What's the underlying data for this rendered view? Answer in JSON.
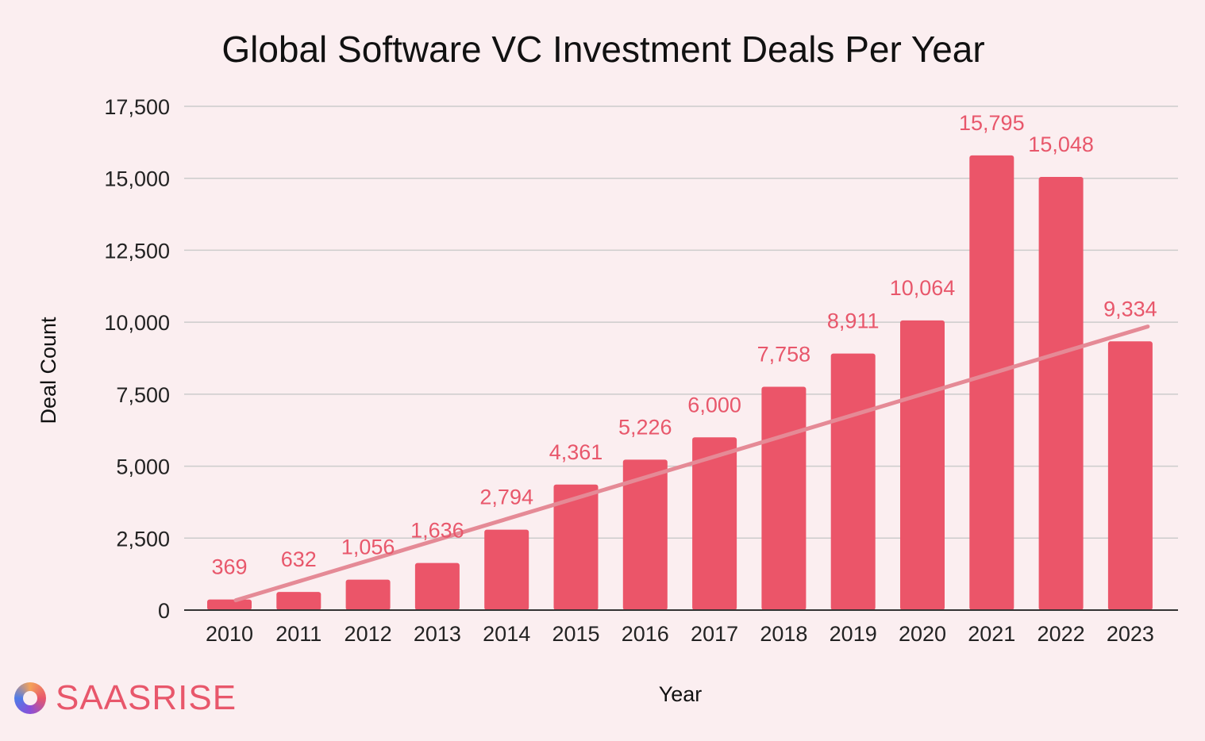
{
  "chart_data": {
    "type": "bar",
    "title": "Global Software VC Investment Deals Per Year",
    "xlabel": "Year",
    "ylabel": "Deal Count",
    "categories": [
      "2010",
      "2011",
      "2012",
      "2013",
      "2014",
      "2015",
      "2016",
      "2017",
      "2018",
      "2019",
      "2020",
      "2021",
      "2022",
      "2023"
    ],
    "values": [
      369,
      632,
      1056,
      1636,
      2794,
      4361,
      5226,
      6000,
      7758,
      8911,
      10064,
      15795,
      15048,
      9334
    ],
    "value_labels": [
      "369",
      "632",
      "1,056",
      "1,636",
      "2,794",
      "4,361",
      "5,226",
      "6,000",
      "7,758",
      "8,911",
      "10,064",
      "15,795",
      "15,048",
      "9,334"
    ],
    "ylim": [
      0,
      17500
    ],
    "yticks": [
      0,
      2500,
      5000,
      7500,
      10000,
      12500,
      15000,
      17500
    ],
    "ytick_labels": [
      "0",
      "2,500",
      "5,000",
      "7,500",
      "10,000",
      "12,500",
      "15,000",
      "17,500"
    ],
    "trendline": {
      "type": "linear",
      "start": 340,
      "end": 9850
    },
    "grid": true,
    "legend": "none",
    "colors": {
      "bar": "#eb5569",
      "trend": "#e58a96",
      "label": "#e8576b",
      "grid": "#cccccc",
      "background": "#fbeef0"
    }
  },
  "brand": {
    "name": "SAASRISE",
    "icon": "saasrise-logo-icon"
  }
}
